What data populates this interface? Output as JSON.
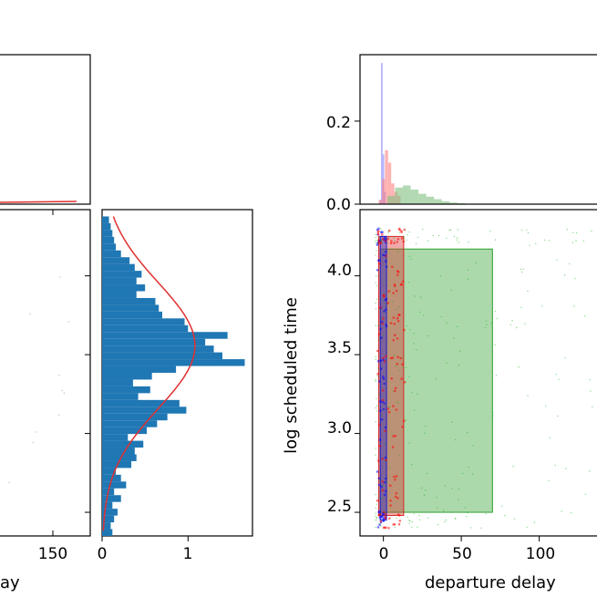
{
  "chart_data": [
    {
      "type": "scatter",
      "panel": "left-joint (cropped)",
      "xlabel": "ay",
      "ylabel": "",
      "x_ticks": [
        "150"
      ],
      "y_ticks": [
        "",
        "",
        "",
        ""
      ],
      "top_marginal": {
        "type": "line",
        "color": "#e03030"
      },
      "points_color": "#cccccc"
    },
    {
      "type": "bar",
      "panel": "horizontal-histogram",
      "orientation": "horizontal",
      "xlabel": "",
      "ylabel": "",
      "xlim": [
        0,
        1.75
      ],
      "ylim": [
        2.38,
        4.3
      ],
      "x_ticks": [
        "0",
        "1"
      ],
      "bar_color": "#1f77b4",
      "curve_color": "#e03030",
      "bins": [
        {
          "y": 2.4,
          "v": 0.12
        },
        {
          "y": 2.44,
          "v": 0.1
        },
        {
          "y": 2.48,
          "v": 0.14
        },
        {
          "y": 2.52,
          "v": 0.18
        },
        {
          "y": 2.56,
          "v": 0.12
        },
        {
          "y": 2.6,
          "v": 0.22
        },
        {
          "y": 2.64,
          "v": 0.14
        },
        {
          "y": 2.68,
          "v": 0.28
        },
        {
          "y": 2.72,
          "v": 0.22
        },
        {
          "y": 2.76,
          "v": 0.16
        },
        {
          "y": 2.8,
          "v": 0.34
        },
        {
          "y": 2.84,
          "v": 0.4
        },
        {
          "y": 2.88,
          "v": 0.38
        },
        {
          "y": 2.92,
          "v": 0.48
        },
        {
          "y": 2.96,
          "v": 0.3
        },
        {
          "y": 3.0,
          "v": 0.52
        },
        {
          "y": 3.04,
          "v": 0.64
        },
        {
          "y": 3.08,
          "v": 0.76
        },
        {
          "y": 3.12,
          "v": 0.98
        },
        {
          "y": 3.16,
          "v": 0.9
        },
        {
          "y": 3.2,
          "v": 0.42
        },
        {
          "y": 3.24,
          "v": 0.56
        },
        {
          "y": 3.28,
          "v": 0.36
        },
        {
          "y": 3.32,
          "v": 0.58
        },
        {
          "y": 3.36,
          "v": 0.86
        },
        {
          "y": 3.4,
          "v": 1.66
        },
        {
          "y": 3.44,
          "v": 1.4
        },
        {
          "y": 3.48,
          "v": 1.3
        },
        {
          "y": 3.52,
          "v": 1.2
        },
        {
          "y": 3.56,
          "v": 1.46
        },
        {
          "y": 3.6,
          "v": 1.0
        },
        {
          "y": 3.64,
          "v": 0.96
        },
        {
          "y": 3.68,
          "v": 0.7
        },
        {
          "y": 3.72,
          "v": 0.66
        },
        {
          "y": 3.76,
          "v": 0.62
        },
        {
          "y": 3.8,
          "v": 0.4
        },
        {
          "y": 3.84,
          "v": 0.5
        },
        {
          "y": 3.88,
          "v": 0.4
        },
        {
          "y": 3.92,
          "v": 0.46
        },
        {
          "y": 3.96,
          "v": 0.38
        },
        {
          "y": 4.0,
          "v": 0.32
        },
        {
          "y": 4.04,
          "v": 0.22
        },
        {
          "y": 4.08,
          "v": 0.16
        },
        {
          "y": 4.12,
          "v": 0.14
        },
        {
          "y": 4.16,
          "v": 0.12
        },
        {
          "y": 4.2,
          "v": 0.1
        },
        {
          "y": 4.24,
          "v": 0.08
        }
      ],
      "normal_curve": {
        "mean": 3.5,
        "sd": 0.37,
        "peak": 1.08
      }
    },
    {
      "type": "scatter",
      "panel": "right-joint",
      "xlabel": "departure delay",
      "ylabel": "log scheduled time",
      "xlim": [
        -15,
        140
      ],
      "ylim": [
        2.35,
        4.42
      ],
      "x_ticks": [
        "0",
        "50",
        "100"
      ],
      "y_ticks": [
        "2.5",
        "3.0",
        "3.5",
        "4.0"
      ],
      "series": [
        {
          "color": "#0000ff",
          "x_range": [
            -4,
            2
          ],
          "y_range": [
            2.4,
            4.3
          ]
        },
        {
          "color": "#ff0000",
          "x_range": [
            -4,
            14
          ],
          "y_range": [
            2.4,
            4.3
          ]
        },
        {
          "color": "#00aa00",
          "x_range": [
            -5,
            140
          ],
          "y_range": [
            2.4,
            4.3
          ]
        }
      ],
      "boxes": [
        {
          "color": "#2ca02c",
          "x": [
            -2,
            70
          ],
          "y": [
            2.5,
            4.17
          ]
        },
        {
          "color": "#d62728",
          "x": [
            -3,
            13
          ],
          "y": [
            2.48,
            4.25
          ]
        },
        {
          "color": "#1f1fd0",
          "x": [
            -2,
            2
          ],
          "y": [
            2.45,
            4.25
          ]
        }
      ],
      "top_marginal": {
        "type": "bar",
        "ylim": [
          0,
          0.36
        ],
        "y_ticks": [
          "0.0",
          "0.2"
        ],
        "series": [
          {
            "color": "#8080ff",
            "bins": [
              {
                "x": -2,
                "v": 0.01
              },
              {
                "x": -1,
                "v": 0.34
              },
              {
                "x": 0,
                "v": 0.12
              },
              {
                "x": 1,
                "v": 0.03
              }
            ]
          },
          {
            "color": "#ff8080",
            "bins": [
              {
                "x": -2,
                "v": 0.01
              },
              {
                "x": 0,
                "v": 0.06
              },
              {
                "x": 2,
                "v": 0.13
              },
              {
                "x": 4,
                "v": 0.1
              },
              {
                "x": 6,
                "v": 0.05
              },
              {
                "x": 8,
                "v": 0.03
              },
              {
                "x": 10,
                "v": 0.02
              }
            ]
          },
          {
            "color": "#80c080",
            "bins": [
              {
                "x": 5,
                "v": 0.02
              },
              {
                "x": 10,
                "v": 0.04
              },
              {
                "x": 15,
                "v": 0.045
              },
              {
                "x": 20,
                "v": 0.035
              },
              {
                "x": 25,
                "v": 0.025
              },
              {
                "x": 30,
                "v": 0.018
              },
              {
                "x": 35,
                "v": 0.012
              },
              {
                "x": 40,
                "v": 0.007
              },
              {
                "x": 45,
                "v": 0.004
              },
              {
                "x": 50,
                "v": 0.002
              }
            ]
          }
        ]
      }
    }
  ]
}
